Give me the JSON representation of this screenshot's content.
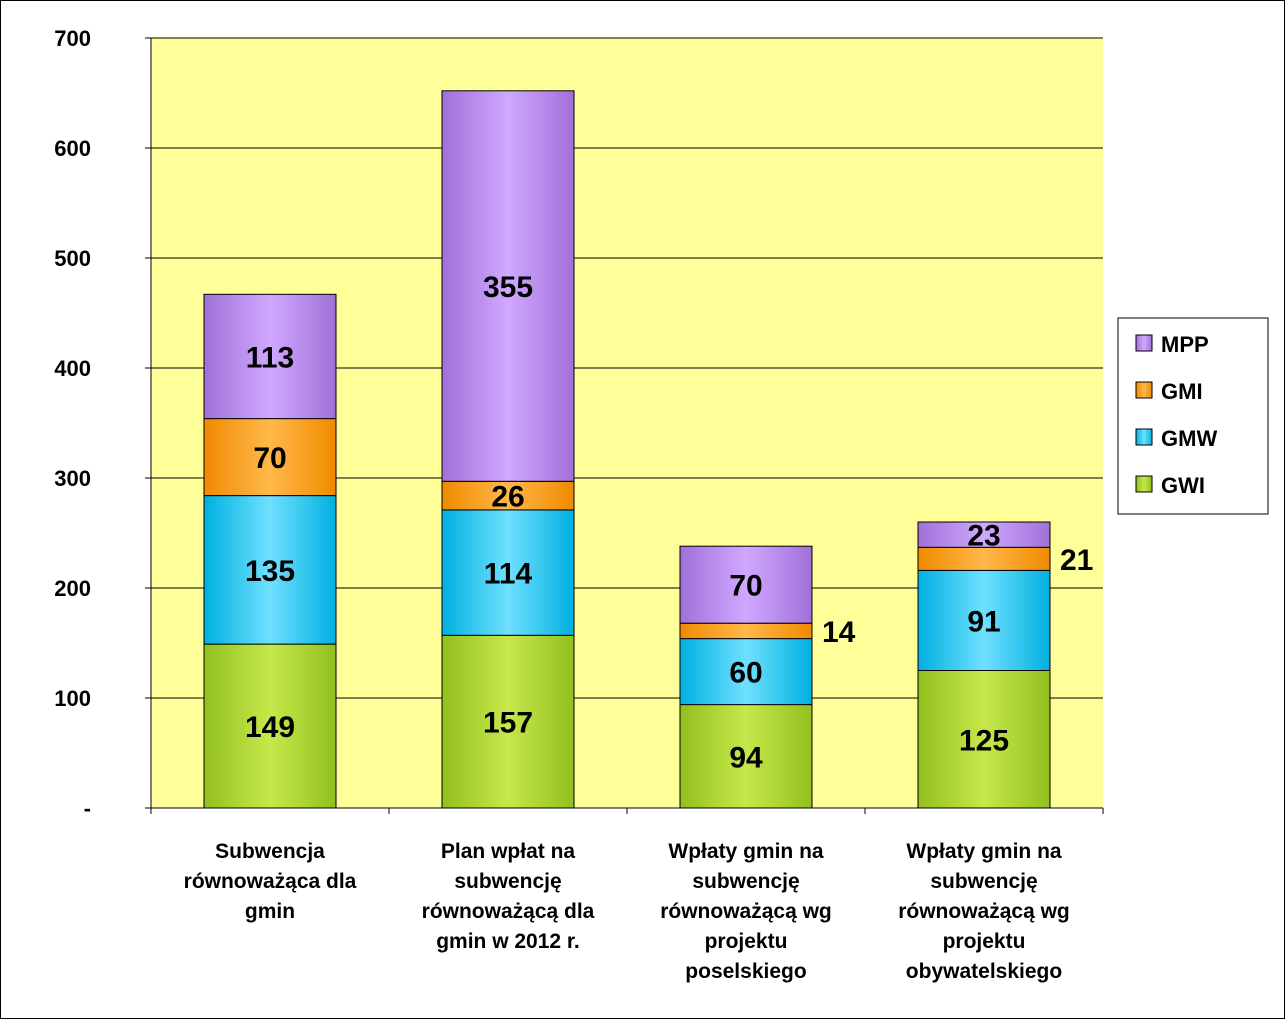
{
  "chart_data": {
    "type": "bar",
    "stacked": true,
    "categories": [
      [
        "Subwencja",
        "równoważąca dla",
        "gmin"
      ],
      [
        "Plan wpłat na",
        "subwencję",
        "równoważącą dla",
        "gmin w 2012 r."
      ],
      [
        "Wpłaty gmin na",
        "subwencję",
        "równoważącą wg",
        "projektu",
        "poselskiego"
      ],
      [
        "Wpłaty gmin na",
        "subwencję",
        "równoważącą wg",
        "projektu",
        "obywatelskiego"
      ]
    ],
    "series": [
      {
        "name": "GWI",
        "values": [
          149,
          157,
          94,
          125
        ],
        "labels": [
          "149",
          "157",
          "94",
          "125"
        ],
        "color": "#92c01f",
        "light": "#c6e84a",
        "label_outside": [
          false,
          false,
          false,
          false
        ]
      },
      {
        "name": "GMW",
        "values": [
          135,
          114,
          60,
          91
        ],
        "labels": [
          "135",
          "114",
          "60",
          "91"
        ],
        "color": "#00b0e0",
        "light": "#6fe0ff",
        "label_outside": [
          false,
          false,
          false,
          false
        ]
      },
      {
        "name": "GMI",
        "values": [
          70,
          26,
          14,
          21
        ],
        "labels": [
          "70",
          "26",
          "14",
          "21"
        ],
        "color": "#f08a00",
        "light": "#ffb84a",
        "label_outside": [
          false,
          false,
          true,
          true
        ]
      },
      {
        "name": "MPP",
        "values": [
          113,
          355,
          70,
          23
        ],
        "labels": [
          "113",
          "355",
          "70",
          "23"
        ],
        "color": "#a070d8",
        "light": "#d0a8ff",
        "label_outside": [
          false,
          false,
          false,
          false
        ]
      }
    ],
    "legend_order": [
      "MPP",
      "GMI",
      "GMW",
      "GWI"
    ],
    "legend_position": "right",
    "ylim": [
      0,
      700
    ],
    "yticks": [
      0,
      100,
      200,
      300,
      400,
      500,
      600,
      700
    ],
    "ytick_labels": [
      "-",
      "100",
      "200",
      "300",
      "400",
      "500",
      "600",
      "700"
    ],
    "grid": true,
    "plot_background": "#ffff99"
  }
}
